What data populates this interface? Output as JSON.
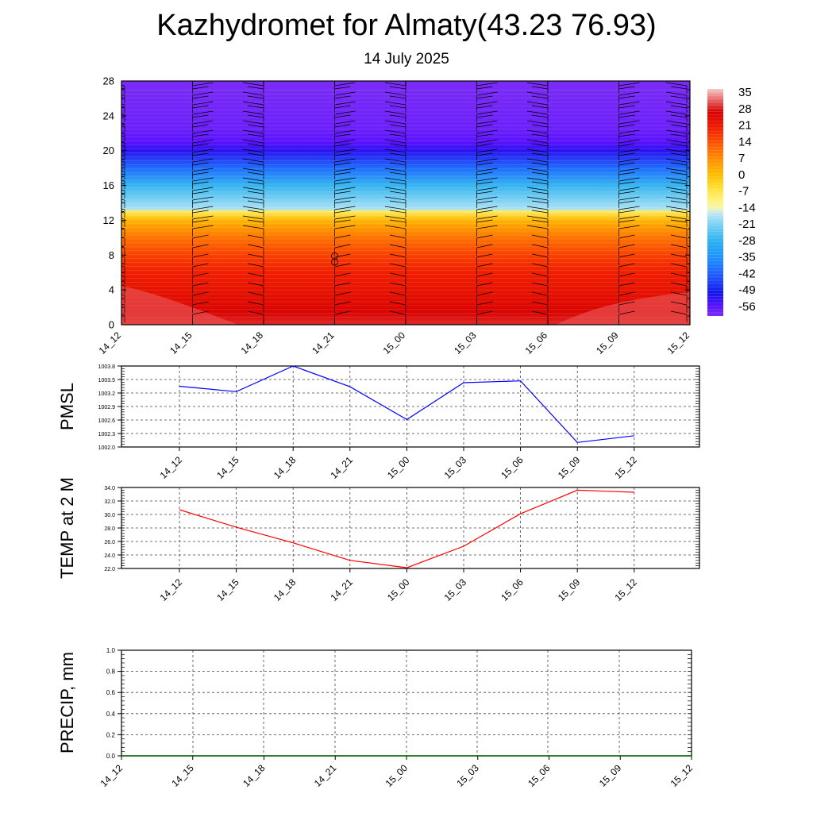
{
  "header": {
    "title": "Kazhydromet for Almaty(43.23 76.93)",
    "subtitle": "14 July 2025"
  },
  "chart_data": [
    {
      "type": "heatmap",
      "x_labels": [
        "14_12",
        "14_15",
        "14_18",
        "14_21",
        "15_00",
        "15_03",
        "15_06",
        "15_09",
        "15_12"
      ],
      "y_ticks": [
        "0",
        "4",
        "8",
        "12",
        "16",
        "20",
        "24",
        "28"
      ],
      "ylim": [
        0,
        28
      ],
      "colorbar_labels": [
        "35",
        "28",
        "21",
        "14",
        "7",
        "0",
        "-7",
        "-14",
        "-21",
        "-28",
        "-35",
        "-42",
        "-49",
        "-56"
      ],
      "colorbar_range": [
        -60,
        38
      ],
      "profile": [
        {
          "h": 0,
          "t": 30
        },
        {
          "h": 1.5,
          "t": 27
        },
        {
          "h": 3,
          "t": 25
        },
        {
          "h": 6,
          "t": 21
        },
        {
          "h": 8,
          "t": 17
        },
        {
          "h": 10,
          "t": 11
        },
        {
          "h": 12,
          "t": 2
        },
        {
          "h": 13,
          "t": -8
        },
        {
          "h": 13.3,
          "t": -17
        },
        {
          "h": 16,
          "t": -27
        },
        {
          "h": 18,
          "t": -40
        },
        {
          "h": 20,
          "t": -52
        },
        {
          "h": 21,
          "t": -56
        },
        {
          "h": 22.5,
          "t": -58
        },
        {
          "h": 28,
          "t": -60
        }
      ],
      "grid": false,
      "colors": {
        "warm": "#e00000",
        "cold": "#7a2cff",
        "mid": "#fff8a0"
      }
    },
    {
      "type": "line",
      "ylabel": "PMSL",
      "x_labels": [
        "14_12",
        "14_15",
        "14_18",
        "14_21",
        "15_00",
        "15_03",
        "15_06",
        "15_09",
        "15_12"
      ],
      "y_ticks": [
        "1002.0",
        "1002.3",
        "1002.6",
        "1002.9",
        "1003.2",
        "1003.5",
        "1003.8"
      ],
      "ylim": [
        1002.0,
        1003.8
      ],
      "x": [
        0,
        1,
        2,
        3,
        4,
        5,
        6,
        7,
        8
      ],
      "values": [
        1003.35,
        1003.23,
        1003.8,
        1003.34,
        1002.61,
        1003.43,
        1003.47,
        1002.1,
        1002.25
      ],
      "color": "#0000ff",
      "grid": true
    },
    {
      "type": "line",
      "ylabel": "TEMP at 2 M",
      "x_labels": [
        "14_12",
        "14_15",
        "14_18",
        "14_21",
        "15_00",
        "15_03",
        "15_06",
        "15_09",
        "15_12"
      ],
      "y_ticks": [
        "22.0",
        "24.0",
        "26.0",
        "28.0",
        "30.0",
        "32.0",
        "34.0"
      ],
      "ylim": [
        22.0,
        34.0
      ],
      "x": [
        0,
        1,
        2,
        3,
        4,
        5,
        6,
        7,
        8
      ],
      "values": [
        30.7,
        28.1,
        25.8,
        23.2,
        22.1,
        25.3,
        30.1,
        33.6,
        33.3
      ],
      "color": "#ff0000",
      "grid": true
    },
    {
      "type": "line",
      "ylabel": "PRECIP, mm",
      "x_labels": [
        "14_12",
        "14_15",
        "14_18",
        "14_21",
        "15_00",
        "15_03",
        "15_06",
        "15_09",
        "15_12"
      ],
      "y_ticks": [
        "0.0",
        "0.2",
        "0.4",
        "0.6",
        "0.8",
        "1.0"
      ],
      "ylim": [
        0.0,
        1.0
      ],
      "x": [
        0,
        8
      ],
      "values": [
        0.0,
        0.0
      ],
      "color": "#006400",
      "grid": true
    }
  ]
}
